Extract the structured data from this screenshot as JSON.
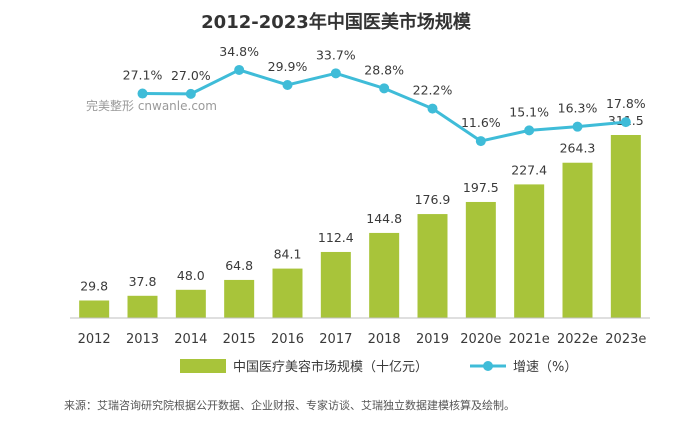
{
  "chart_data": {
    "type": "bar",
    "title": "2012-2023年中国医美市场规模",
    "categories": [
      "2012",
      "2013",
      "2014",
      "2015",
      "2016",
      "2017",
      "2018",
      "2019",
      "2020e",
      "2021e",
      "2022e",
      "2023e"
    ],
    "series": [
      {
        "name": "中国医疗美容市场规模（十亿元）",
        "type": "bar",
        "values": [
          29.8,
          37.8,
          48.0,
          64.8,
          84.1,
          112.4,
          144.8,
          176.9,
          197.5,
          227.4,
          264.3,
          311.5
        ],
        "labels": [
          "29.8",
          "37.8",
          "48.0",
          "64.8",
          "84.1",
          "112.4",
          "144.8",
          "176.9",
          "197.5",
          "227.4",
          "264.3",
          "311.5"
        ]
      },
      {
        "name": "增速（%）",
        "type": "line",
        "values": [
          null,
          27.1,
          27.0,
          34.8,
          29.9,
          33.7,
          28.8,
          22.2,
          11.6,
          15.1,
          16.3,
          17.8
        ],
        "labels": [
          "",
          "27.1%",
          "27.0%",
          "34.8%",
          "29.9%",
          "33.7%",
          "28.8%",
          "22.2%",
          "11.6%",
          "15.1%",
          "16.3%",
          "17.8%"
        ]
      }
    ],
    "ylim": [
      0,
      320
    ],
    "y2lim": [
      0,
      40
    ],
    "grid": false,
    "legend": "bottom"
  },
  "colors": {
    "bar": "#a8c43a",
    "line": "#3fbcd8",
    "axis": "#bfbfbf"
  },
  "source": "来源：艾瑞咨询研究院根据公开数据、企业财报、专家访谈、艾瑞独立数据建模核算及绘制。",
  "watermark": "完美整形 cnwanle.com"
}
